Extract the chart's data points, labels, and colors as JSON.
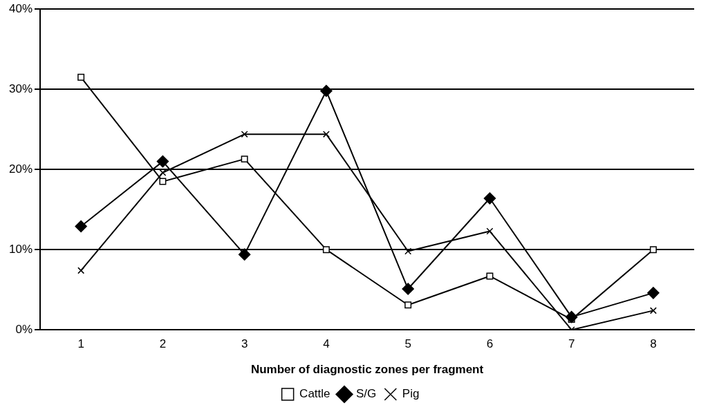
{
  "chart_data": {
    "type": "line",
    "xlabel": "Number of diagnostic zones per fragment",
    "categories": [
      "1",
      "2",
      "3",
      "4",
      "5",
      "6",
      "7",
      "8"
    ],
    "ylim": [
      0,
      40
    ],
    "yticks": [
      {
        "value": 0,
        "label": "0%"
      },
      {
        "value": 10,
        "label": "10%"
      },
      {
        "value": 20,
        "label": "20%"
      },
      {
        "value": 30,
        "label": "30%"
      },
      {
        "value": 40,
        "label": "40%"
      }
    ],
    "grid": "y",
    "legend": "bottom",
    "line_style": "solid",
    "series": [
      {
        "name": "Cattle",
        "color": "#000000",
        "marker": "square",
        "values": [
          31.5,
          18.5,
          21.3,
          10,
          3.1,
          6.7,
          1.3,
          10
        ]
      },
      {
        "name": "S/G",
        "color": "#000000",
        "marker": "diamond",
        "values": [
          12.9,
          21.0,
          9.4,
          29.8,
          5.1,
          16.4,
          1.6,
          4.6
        ]
      },
      {
        "name": "Pig",
        "color": "#000000",
        "marker": "cross",
        "values": [
          7.4,
          19.6,
          24.4,
          24.4,
          9.8,
          12.3,
          0,
          2.4
        ]
      }
    ]
  }
}
